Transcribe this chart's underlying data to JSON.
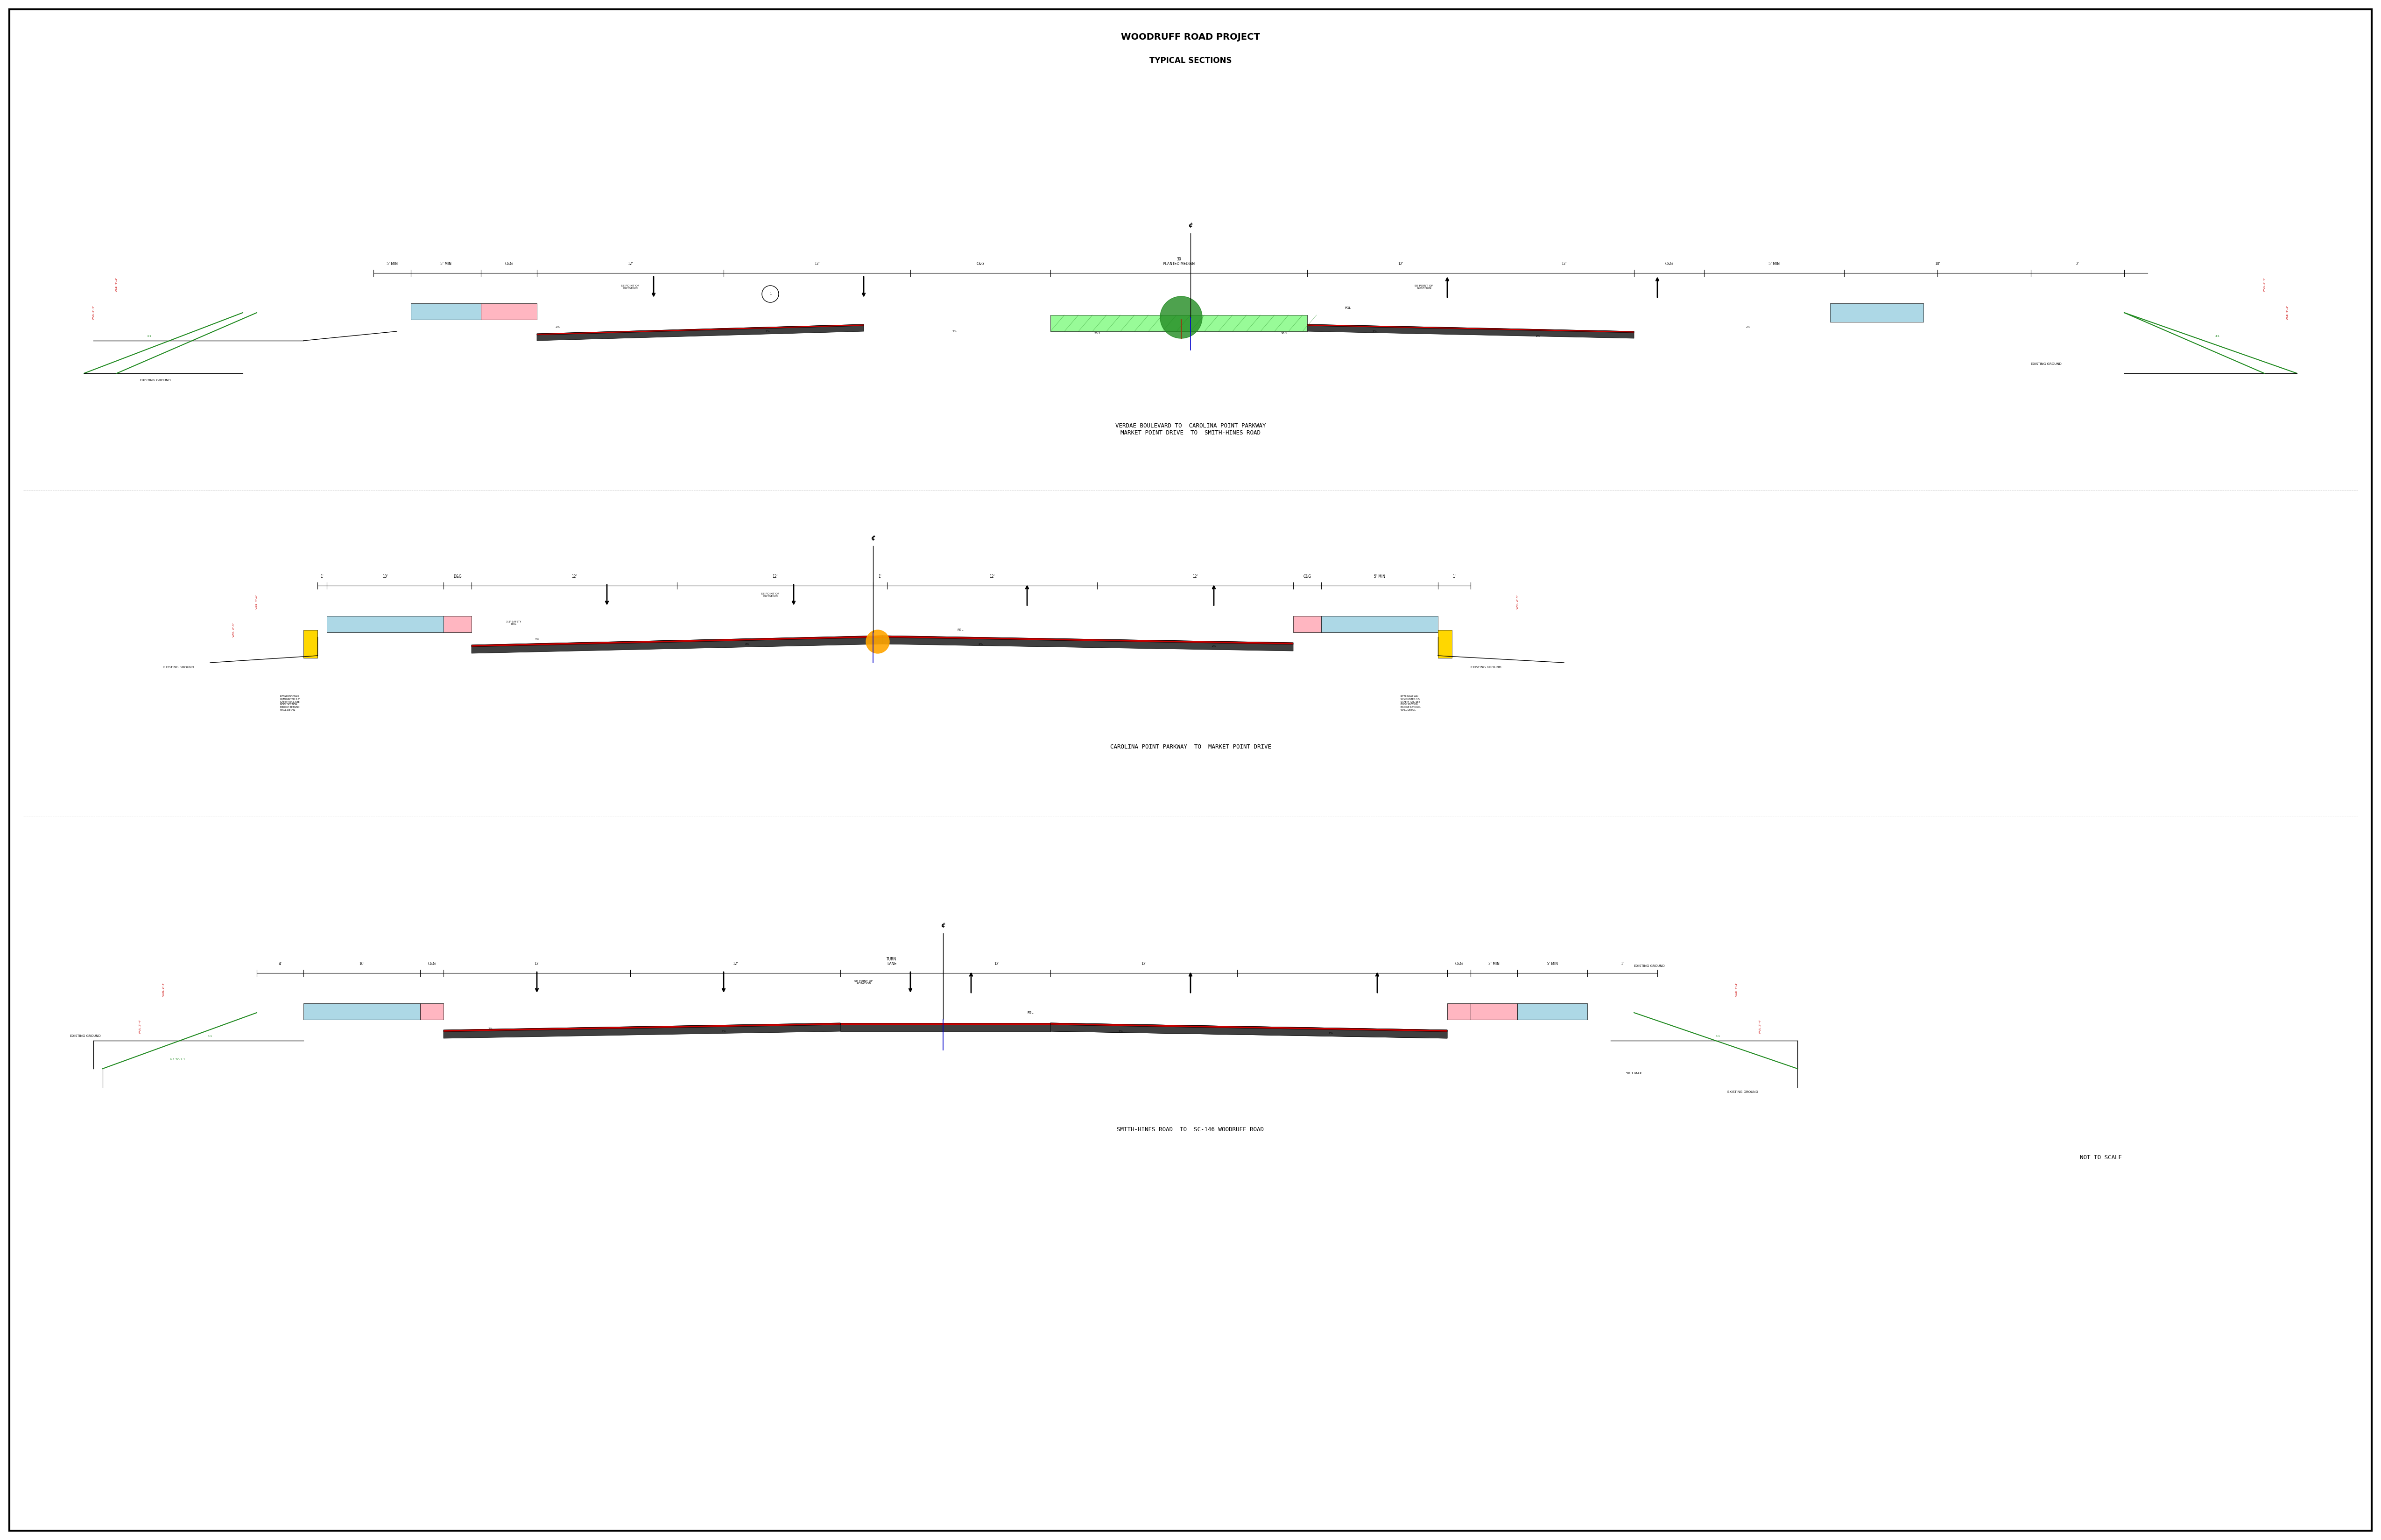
{
  "title": "WOODRUFF ROAD PROJECT TYPICAL SECTIONS",
  "bg_color": "#ffffff",
  "border_color": "#000000",
  "section1_title": "VERDAE BOULEVARD TO  CAROLINA POINT PARKWAY\nMARKET POINT DRIVE  TO  SMITH-HINES ROAD",
  "section2_title": "CAROLINA POINT PARKWAY  TO  MARKET POINT DRIVE",
  "section3_title": "SMITH-HINES ROAD  TO  SC-146 WOODRUFF ROAD",
  "note": "NOT TO SCALE",
  "road_color": "#404040",
  "road_top_color": "#cc0000",
  "road_stripe_color": "#ffffff",
  "sidewalk_color": "#add8e6",
  "median_color": "#90ee90",
  "shoulder_color": "#ffff99",
  "retaining_wall_color": "#ffd700",
  "green_color": "#228B22",
  "red_dim_color": "#cc0000",
  "blue_color": "#0000cc",
  "black_color": "#000000"
}
